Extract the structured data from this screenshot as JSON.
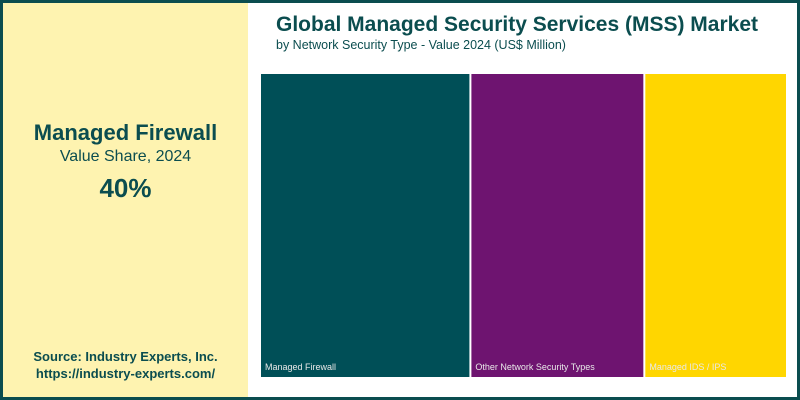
{
  "highlight": {
    "segment": "Managed Firewall",
    "label": "Value Share, 2024",
    "value": "40%"
  },
  "source": {
    "line1": "Source: Industry Experts, Inc.",
    "line2": "https://industry-experts.com/"
  },
  "chart_data": {
    "type": "treemap",
    "title": "Global Managed Security Services (MSS) Market",
    "subtitle": "by Network Security Type - Value 2024 (US$ Million)",
    "categories": [
      "Managed Firewall",
      "Other Network Security Types",
      "Managed IDS / IPS"
    ],
    "values": [
      40,
      33,
      27
    ],
    "value_unit": "approximate % share (estimated from tile areas)",
    "colors": [
      "#004f57",
      "#6e1470",
      "#ffd600"
    ]
  }
}
